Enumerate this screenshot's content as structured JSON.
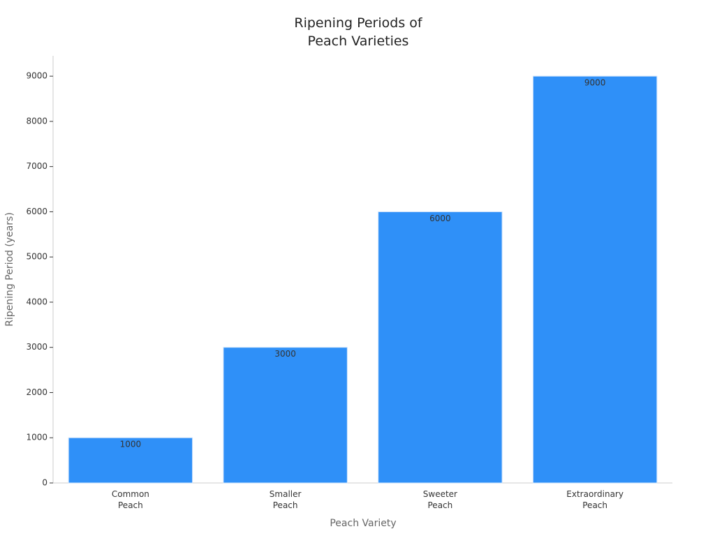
{
  "chart_data": {
    "type": "bar",
    "title": "Ripening Periods of\nPeach Varieties",
    "x_label": "Peach Variety",
    "y_label": "Ripening Period (years)",
    "categories": [
      "Common\nPeach",
      "Smaller\nPeach",
      "Sweeter\nPeach",
      "Extraordinary\nPeach"
    ],
    "values": [
      1000,
      3000,
      6000,
      9000
    ],
    "color": "#2f90f8",
    "ylim": [
      0,
      9450
    ],
    "yticks": [
      0,
      1000,
      2000,
      3000,
      4000,
      5000,
      6000,
      7000,
      8000,
      9000
    ],
    "grid": false
  }
}
